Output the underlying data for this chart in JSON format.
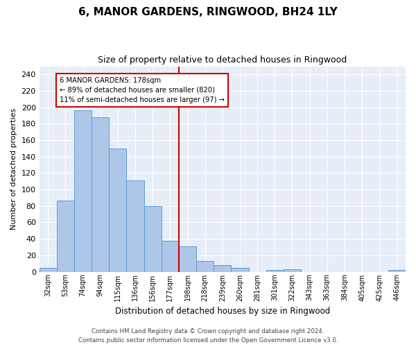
{
  "title": "6, MANOR GARDENS, RINGWOOD, BH24 1LY",
  "subtitle": "Size of property relative to detached houses in Ringwood",
  "xlabel": "Distribution of detached houses by size in Ringwood",
  "ylabel": "Number of detached properties",
  "categories": [
    "32sqm",
    "53sqm",
    "74sqm",
    "94sqm",
    "115sqm",
    "136sqm",
    "156sqm",
    "177sqm",
    "198sqm",
    "218sqm",
    "239sqm",
    "260sqm",
    "281sqm",
    "301sqm",
    "322sqm",
    "343sqm",
    "363sqm",
    "384sqm",
    "405sqm",
    "425sqm",
    "446sqm"
  ],
  "values": [
    5,
    87,
    196,
    188,
    150,
    111,
    80,
    38,
    31,
    13,
    8,
    5,
    0,
    2,
    3,
    0,
    0,
    0,
    0,
    0,
    2
  ],
  "bar_color": "#aec6e8",
  "bar_edge_color": "#5a9fd4",
  "background_color": "#e8eef8",
  "grid_color": "#ffffff",
  "ylim": [
    0,
    250
  ],
  "yticks": [
    0,
    20,
    40,
    60,
    80,
    100,
    120,
    140,
    160,
    180,
    200,
    220,
    240
  ],
  "property_label": "6 MANOR GARDENS: 178sqm",
  "pct_smaller": "89% of detached houses are smaller (820)",
  "pct_larger": "11% of semi-detached houses are larger (97)",
  "vline_color": "#cc0000",
  "annotation_box_color": "#cc0000",
  "footer1": "Contains HM Land Registry data © Crown copyright and database right 2024.",
  "footer2": "Contains public sector information licensed under the Open Government Licence v3.0."
}
